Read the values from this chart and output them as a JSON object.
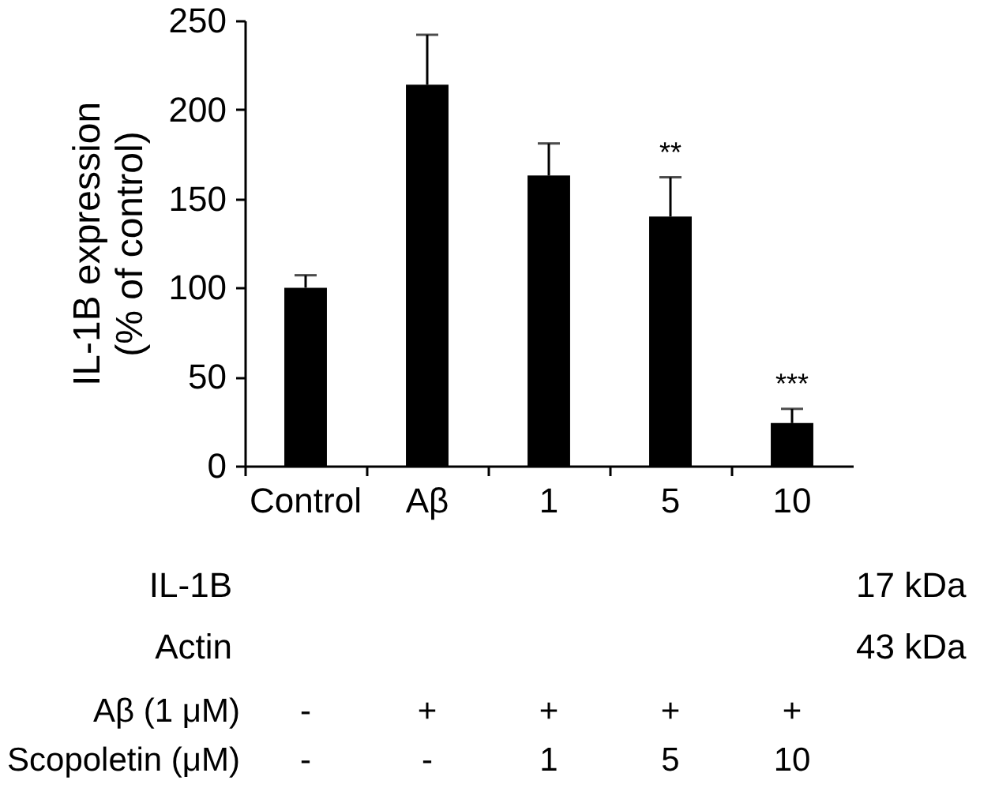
{
  "chart_data": {
    "type": "bar",
    "ylabel": "IL-1B expression\n(% of control)",
    "categories": [
      "Control",
      "Aβ",
      "1",
      "5",
      "10"
    ],
    "values": [
      100,
      214,
      163,
      140,
      24
    ],
    "errors": [
      [
        100,
        107
      ],
      [
        214,
        242
      ],
      [
        163,
        181
      ],
      [
        140,
        162
      ],
      [
        24,
        32
      ]
    ],
    "color": "#000000",
    "ylim": [
      0,
      250
    ],
    "yticks": [
      0,
      50,
      100,
      150,
      200,
      250
    ],
    "annotations": [
      "**",
      "***",
      "IL-1B",
      "17 kDa",
      "Actin",
      "43 kDa",
      "Aβ (1 μM)",
      "-",
      "+",
      "+",
      "+",
      "+",
      "Scopoletin (μM)",
      "-",
      "-",
      "1",
      "5",
      "10"
    ]
  }
}
